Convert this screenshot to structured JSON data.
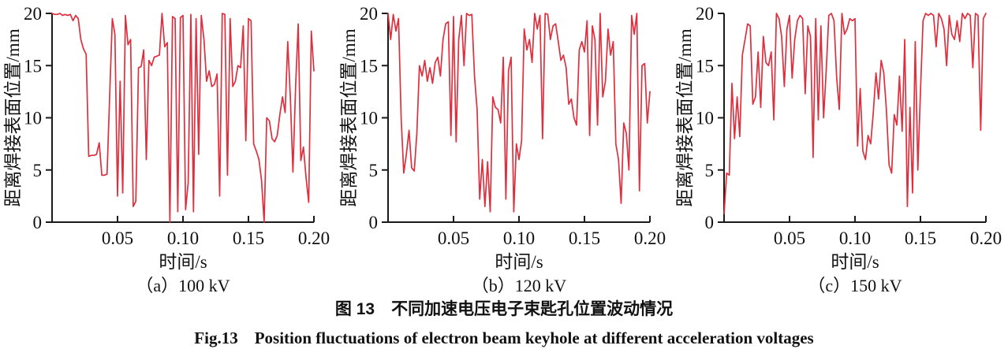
{
  "figure": {
    "caption_cn": "图 13　不同加速电压电子束匙孔位置波动情况",
    "caption_en": "Fig.13　Position fluctuations of electron beam keyhole at different acceleration voltages"
  },
  "style": {
    "line_color": "#dd2f3d",
    "axis_color": "#1a1a1a",
    "text_color": "#111111"
  },
  "chart_data": [
    {
      "type": "line",
      "subcaption": "（a）100 kV",
      "xlabel": "时间/s",
      "ylabel": "距离焊接表面位置/mm",
      "xlim": [
        0,
        0.2
      ],
      "ylim": [
        0,
        20
      ],
      "xticks": [
        0.05,
        0.1,
        0.15,
        0.2
      ],
      "xtick_labels": [
        "0.05",
        "0.10",
        "0.15",
        "0.20"
      ],
      "yticks": [
        0,
        5,
        10,
        15,
        20
      ],
      "grid": false,
      "legend": "none",
      "x_start": 0,
      "x_step": 0.002,
      "values": [
        20,
        19.9,
        19.9,
        20,
        19.8,
        19.9,
        19.8,
        19.9,
        19.3,
        19.8,
        19.5,
        17.5,
        16.6,
        16.1,
        6.3,
        6.4,
        6.4,
        6.5,
        7.6,
        4.5,
        4.5,
        4.6,
        12,
        19.5,
        18,
        2.5,
        13.5,
        2.8,
        19.8,
        17,
        17.5,
        1.5,
        2,
        14.8,
        14.9,
        16.5,
        6,
        15.5,
        15,
        15.8,
        15.9,
        16,
        20,
        16.8,
        17.2,
        0,
        19.7,
        19.5,
        1,
        19.6,
        19.8,
        1.2,
        3.8,
        19.9,
        1,
        19.5,
        6.5,
        19.8,
        17.5,
        13.5,
        14.5,
        13,
        13.2,
        14.2,
        2.5,
        20,
        19.9,
        4.5,
        19.5,
        13,
        13.5,
        15,
        14.8,
        18.8,
        7.8,
        19.5,
        19.3,
        7.5,
        6.8,
        6,
        4,
        0,
        10,
        9.7,
        8,
        7.7,
        8.3,
        10.3,
        12,
        10.5,
        17.3,
        12,
        4.8,
        13,
        19,
        5.9,
        7.2,
        4.3,
        1.9,
        18.3,
        14.5
      ]
    },
    {
      "type": "line",
      "subcaption": "（b）120 kV",
      "xlabel": "时间/s",
      "ylabel": "距离焊接表面位置/mm",
      "xlim": [
        0,
        0.2
      ],
      "ylim": [
        0,
        20
      ],
      "xticks": [
        0.05,
        0.1,
        0.15,
        0.2
      ],
      "xtick_labels": [
        "0.05",
        "0.10",
        "0.15",
        "0.20"
      ],
      "yticks": [
        0,
        5,
        10,
        15,
        20
      ],
      "grid": false,
      "legend": "none",
      "x_start": 0,
      "x_step": 0.002,
      "values": [
        20,
        17.5,
        19.9,
        18.3,
        19.5,
        10,
        4.7,
        6.5,
        8.8,
        5.2,
        4.9,
        8.5,
        15,
        14,
        15.5,
        13.5,
        14.8,
        13.3,
        15.3,
        15.8,
        14,
        17.5,
        19,
        19.2,
        8.3,
        19.7,
        7.7,
        17.5,
        19.8,
        15,
        20,
        19.8,
        19.9,
        14,
        10.8,
        2.2,
        6,
        1.5,
        5.8,
        1,
        12,
        11,
        10.8,
        9.5,
        15.8,
        2.2,
        14.5,
        15.8,
        1,
        7.5,
        6,
        7.8,
        18.5,
        16.5,
        17.5,
        15.3,
        20,
        18.5,
        19.8,
        8,
        20,
        19.9,
        17.5,
        18.8,
        19,
        17.3,
        15.5,
        16,
        14.8,
        11.3,
        11.8,
        10,
        9.3,
        16.5,
        17.3,
        16.3,
        19.3,
        8.3,
        18.8,
        17.5,
        9.3,
        20,
        12,
        13.5,
        18.5,
        16,
        17.3,
        7.5,
        6,
        1.8,
        9.5,
        8.5,
        5,
        19.8,
        18,
        20,
        3,
        15,
        15.2,
        9.5,
        12.5
      ]
    },
    {
      "type": "line",
      "subcaption": "（c）150 kV",
      "xlabel": "时间/s",
      "ylabel": "距离焊接表面位置/mm",
      "xlim": [
        0,
        0.2
      ],
      "ylim": [
        0,
        20
      ],
      "xticks": [
        0.05,
        0.1,
        0.15,
        0.2
      ],
      "xtick_labels": [
        "0.05",
        "0.10",
        "0.15",
        "0.20"
      ],
      "yticks": [
        0,
        5,
        10,
        15,
        20
      ],
      "grid": false,
      "legend": "none",
      "x_start": 0,
      "x_step": 0.002,
      "values": [
        0.8,
        4.7,
        4.5,
        13.3,
        8,
        12,
        8.2,
        16,
        17.5,
        19,
        18.8,
        11.3,
        12,
        16.3,
        11,
        17.8,
        15.3,
        15,
        16.3,
        9.8,
        20,
        19.5,
        17.8,
        13,
        18.5,
        19.8,
        13.8,
        17.5,
        19.3,
        19.8,
        19.5,
        12.3,
        18.8,
        17.8,
        6.2,
        19.5,
        9.8,
        18.8,
        10,
        14.5,
        19.8,
        20,
        19.3,
        13.8,
        10.8,
        20,
        18,
        18.5,
        19.5,
        19.3,
        19.5,
        7.3,
        12.8,
        6.8,
        6,
        8.3,
        7.5,
        10.5,
        14.3,
        11.8,
        15.5,
        14.3,
        10.8,
        5.5,
        4.7,
        10.3,
        9.3,
        14,
        8.7,
        17.5,
        1.5,
        11,
        2.8,
        17.3,
        5,
        12.5,
        19.3,
        20,
        19.8,
        20,
        19.8,
        16.8,
        20,
        19.5,
        18.5,
        15,
        19.8,
        18,
        17.5,
        19.3,
        17.3,
        20,
        19.5,
        20,
        19.8,
        14.8,
        20,
        19.8,
        8.8,
        19.5,
        20
      ]
    }
  ]
}
